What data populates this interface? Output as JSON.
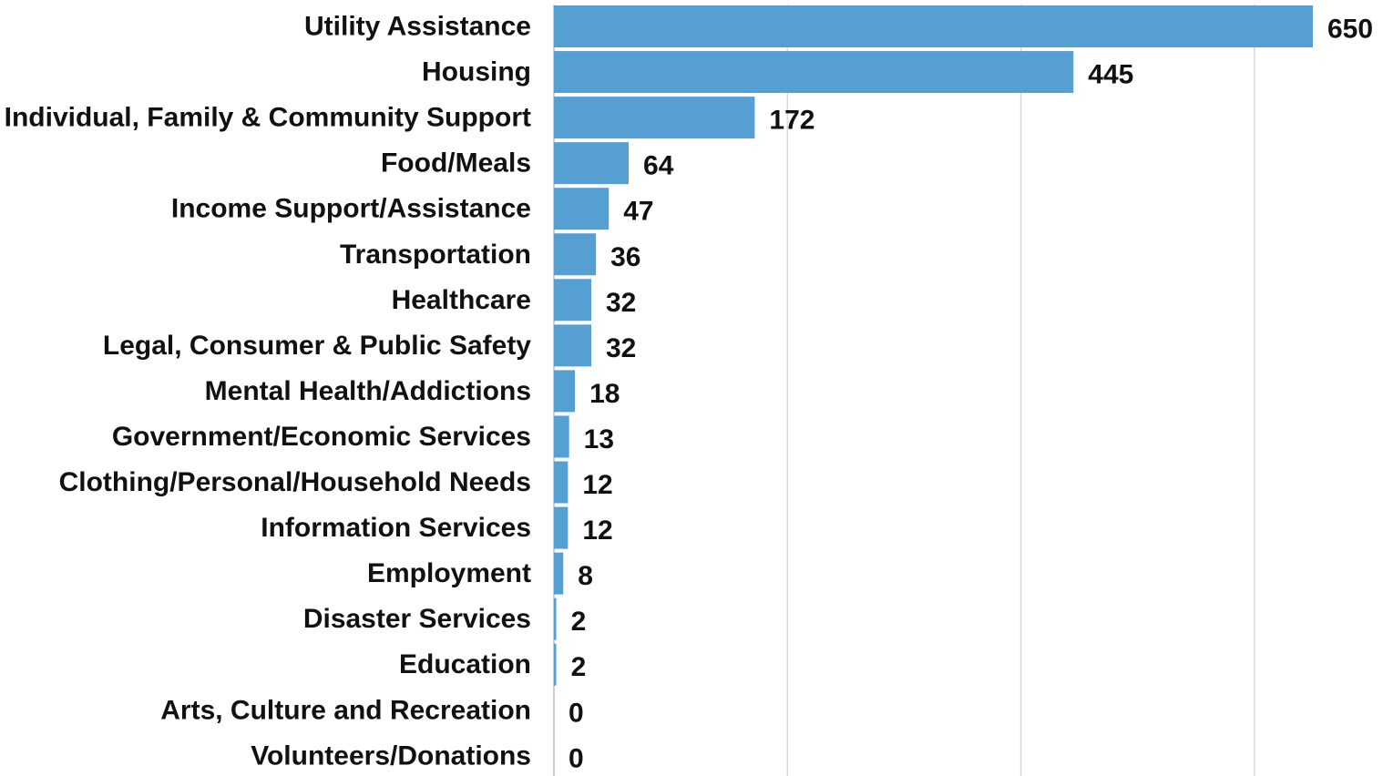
{
  "chart_data": {
    "type": "bar",
    "orientation": "horizontal",
    "title": "",
    "xlabel": "",
    "ylabel": "",
    "categories": [
      "Utility Assistance",
      "Housing",
      "Individual, Family & Community Support",
      "Food/Meals",
      "Income Support/Assistance",
      "Transportation",
      "Healthcare",
      "Legal, Consumer & Public Safety",
      "Mental Health/Addictions",
      "Government/Economic Services",
      "Clothing/Personal/Household Needs",
      "Information Services",
      "Employment",
      "Disaster Services",
      "Education",
      "Arts, Culture and Recreation",
      "Volunteers/Donations"
    ],
    "values": [
      650,
      445,
      172,
      64,
      47,
      36,
      32,
      32,
      18,
      13,
      12,
      12,
      8,
      2,
      2,
      0,
      0
    ],
    "xlim": [
      0,
      700
    ],
    "grid": true,
    "grid_values": [
      200,
      400,
      600
    ],
    "legend": "none",
    "data_labels": true,
    "bar_color": "#569fd3"
  }
}
